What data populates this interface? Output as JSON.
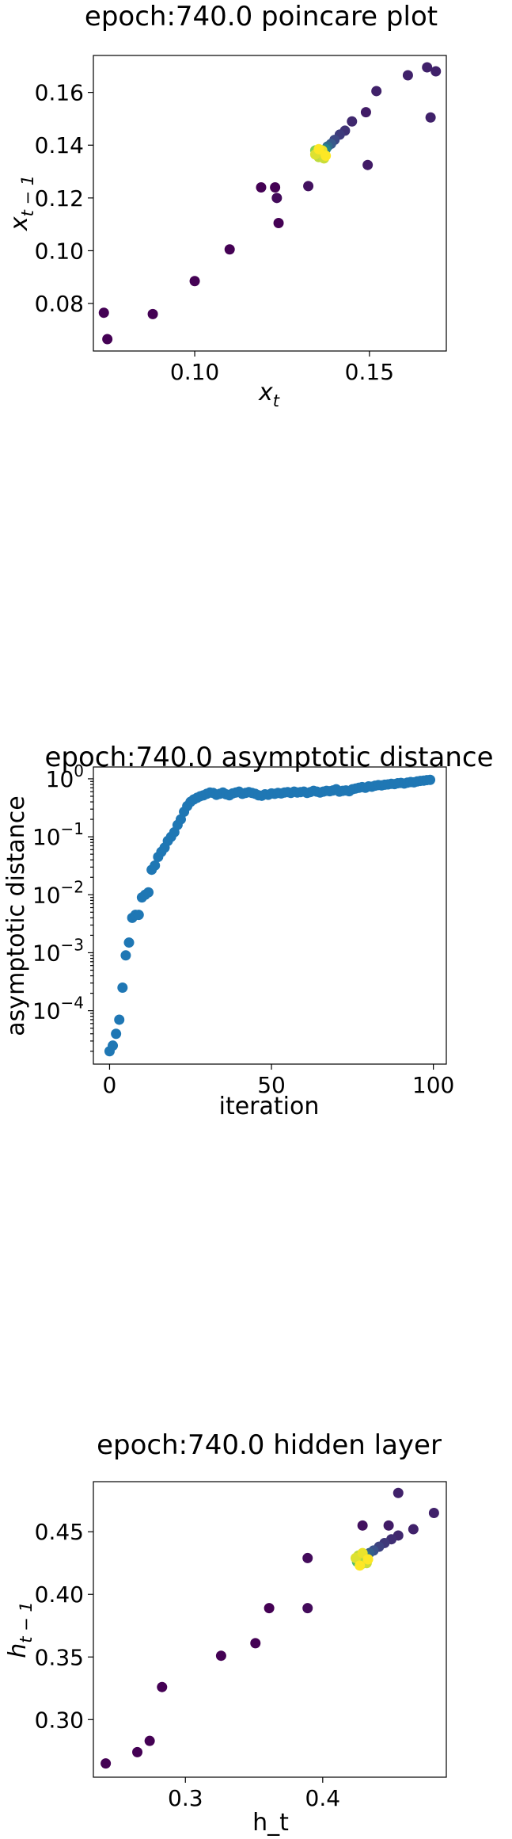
{
  "chart_data": [
    {
      "type": "scatter",
      "title": "epoch:740.0 poincare plot",
      "xlabel": "x_t",
      "ylabel": "x_{t-1}",
      "xlim": [
        0.071,
        0.172
      ],
      "ylim": [
        0.062,
        0.174
      ],
      "xticks": [
        0.1,
        0.15
      ],
      "xtick_labels": [
        "0.10",
        "0.15"
      ],
      "yticks": [
        0.08,
        0.1,
        0.12,
        0.14,
        0.16
      ],
      "ytick_labels": [
        "0.08",
        "0.10",
        "0.12",
        "0.14",
        "0.16"
      ],
      "grid": false,
      "colormap": [
        "#440154",
        "#3b528b",
        "#21918c",
        "#5ec962",
        "#fde725"
      ],
      "points": [
        {
          "x": 0.074,
          "y": 0.0765,
          "c": 0.0
        },
        {
          "x": 0.075,
          "y": 0.0665,
          "c": 0.0
        },
        {
          "x": 0.088,
          "y": 0.076,
          "c": 0.0
        },
        {
          "x": 0.1,
          "y": 0.0885,
          "c": 0.0
        },
        {
          "x": 0.11,
          "y": 0.1005,
          "c": 0.0
        },
        {
          "x": 0.119,
          "y": 0.124,
          "c": 0.0
        },
        {
          "x": 0.123,
          "y": 0.124,
          "c": 0.0
        },
        {
          "x": 0.124,
          "y": 0.1105,
          "c": 0.0
        },
        {
          "x": 0.1235,
          "y": 0.12,
          "c": 0.03
        },
        {
          "x": 0.1325,
          "y": 0.1245,
          "c": 0.05
        },
        {
          "x": 0.149,
          "y": 0.1525,
          "c": 0.08
        },
        {
          "x": 0.1495,
          "y": 0.1325,
          "c": 0.08
        },
        {
          "x": 0.152,
          "y": 0.1605,
          "c": 0.1
        },
        {
          "x": 0.161,
          "y": 0.1665,
          "c": 0.1
        },
        {
          "x": 0.1665,
          "y": 0.1695,
          "c": 0.1
        },
        {
          "x": 0.169,
          "y": 0.168,
          "c": 0.1
        },
        {
          "x": 0.1675,
          "y": 0.1505,
          "c": 0.1
        },
        {
          "x": 0.145,
          "y": 0.149,
          "c": 0.12
        },
        {
          "x": 0.143,
          "y": 0.1455,
          "c": 0.15
        },
        {
          "x": 0.1415,
          "y": 0.144,
          "c": 0.18
        },
        {
          "x": 0.14,
          "y": 0.142,
          "c": 0.22
        },
        {
          "x": 0.139,
          "y": 0.1405,
          "c": 0.28
        },
        {
          "x": 0.138,
          "y": 0.1395,
          "c": 0.35
        },
        {
          "x": 0.1375,
          "y": 0.1385,
          "c": 0.45
        },
        {
          "x": 0.1365,
          "y": 0.1375,
          "c": 0.55
        },
        {
          "x": 0.1355,
          "y": 0.137,
          "c": 0.65
        },
        {
          "x": 0.136,
          "y": 0.136,
          "c": 0.7
        },
        {
          "x": 0.1345,
          "y": 0.138,
          "c": 0.8
        },
        {
          "x": 0.1365,
          "y": 0.1365,
          "c": 0.85
        },
        {
          "x": 0.1355,
          "y": 0.1355,
          "c": 0.9
        },
        {
          "x": 0.137,
          "y": 0.135,
          "c": 0.92
        },
        {
          "x": 0.1345,
          "y": 0.1365,
          "c": 0.95
        },
        {
          "x": 0.1365,
          "y": 0.138,
          "c": 0.97
        },
        {
          "x": 0.1355,
          "y": 0.1385,
          "c": 1.0
        },
        {
          "x": 0.1375,
          "y": 0.136,
          "c": 1.0
        }
      ]
    },
    {
      "type": "scatter",
      "title": "epoch:740.0 asymptotic distance",
      "xlabel": "iteration",
      "ylabel": "asymptotic distance",
      "yscale": "log",
      "xlim": [
        -5,
        104
      ],
      "ylim": [
        1.2e-05,
        1.6
      ],
      "xticks": [
        0,
        50,
        100
      ],
      "xtick_labels": [
        "0",
        "50",
        "100"
      ],
      "yticks": [
        0.0001,
        0.001,
        0.01,
        0.1,
        1
      ],
      "ytick_labels": [
        "10^-4",
        "10^-3",
        "10^-2",
        "10^-1",
        "10^0"
      ],
      "grid": false,
      "color": "#1f77b4",
      "x": [
        0,
        1,
        2,
        3,
        4,
        5,
        6,
        7,
        8,
        9,
        10,
        11,
        12,
        13,
        14,
        15,
        16,
        17,
        18,
        19,
        20,
        21,
        22,
        23,
        24,
        25,
        26,
        27,
        28,
        29,
        30,
        31,
        32,
        33,
        34,
        35,
        36,
        37,
        38,
        39,
        40,
        41,
        42,
        43,
        44,
        45,
        46,
        47,
        48,
        49,
        50,
        51,
        52,
        53,
        54,
        55,
        56,
        57,
        58,
        59,
        60,
        61,
        62,
        63,
        64,
        65,
        66,
        67,
        68,
        69,
        70,
        71,
        72,
        73,
        74,
        75,
        76,
        77,
        78,
        79,
        80,
        81,
        82,
        83,
        84,
        85,
        86,
        87,
        88,
        89,
        90,
        91,
        92,
        93,
        94,
        95,
        96,
        97,
        98,
        99
      ],
      "y": [
        2e-05,
        2.5e-05,
        4e-05,
        7e-05,
        0.00025,
        0.0009,
        0.0015,
        0.004,
        0.0045,
        0.0045,
        0.009,
        0.01,
        0.011,
        0.027,
        0.032,
        0.045,
        0.055,
        0.065,
        0.085,
        0.1,
        0.12,
        0.16,
        0.2,
        0.27,
        0.34,
        0.4,
        0.44,
        0.47,
        0.5,
        0.52,
        0.55,
        0.58,
        0.57,
        0.53,
        0.55,
        0.58,
        0.54,
        0.52,
        0.56,
        0.58,
        0.6,
        0.55,
        0.57,
        0.59,
        0.57,
        0.55,
        0.52,
        0.51,
        0.54,
        0.53,
        0.56,
        0.55,
        0.57,
        0.56,
        0.58,
        0.59,
        0.57,
        0.6,
        0.58,
        0.59,
        0.6,
        0.57,
        0.59,
        0.62,
        0.6,
        0.58,
        0.6,
        0.62,
        0.61,
        0.63,
        0.66,
        0.6,
        0.62,
        0.63,
        0.61,
        0.66,
        0.68,
        0.7,
        0.72,
        0.7,
        0.74,
        0.73,
        0.76,
        0.78,
        0.77,
        0.79,
        0.8,
        0.82,
        0.81,
        0.84,
        0.85,
        0.83,
        0.86,
        0.88,
        0.87,
        0.9,
        0.92,
        0.93,
        0.95,
        0.96
      ]
    },
    {
      "type": "scatter",
      "title": "epoch:740.0 hidden layer",
      "xlabel": "h_t",
      "ylabel": "h_{t-1}",
      "xlim": [
        0.233,
        0.49
      ],
      "ylim": [
        0.254,
        0.49
      ],
      "xticks": [
        0.3,
        0.4
      ],
      "xtick_labels": [
        "0.3",
        "0.4"
      ],
      "yticks": [
        0.3,
        0.35,
        0.4,
        0.45
      ],
      "ytick_labels": [
        "0.30",
        "0.35",
        "0.40",
        "0.45"
      ],
      "grid": false,
      "colormap": [
        "#440154",
        "#3b528b",
        "#21918c",
        "#5ec962",
        "#fde725"
      ],
      "points": [
        {
          "x": 0.242,
          "y": 0.265,
          "c": 0.0
        },
        {
          "x": 0.265,
          "y": 0.274,
          "c": 0.0
        },
        {
          "x": 0.274,
          "y": 0.283,
          "c": 0.0
        },
        {
          "x": 0.283,
          "y": 0.326,
          "c": 0.0
        },
        {
          "x": 0.326,
          "y": 0.351,
          "c": 0.0
        },
        {
          "x": 0.351,
          "y": 0.361,
          "c": 0.0
        },
        {
          "x": 0.361,
          "y": 0.389,
          "c": 0.0
        },
        {
          "x": 0.389,
          "y": 0.389,
          "c": 0.03
        },
        {
          "x": 0.389,
          "y": 0.429,
          "c": 0.03
        },
        {
          "x": 0.429,
          "y": 0.455,
          "c": 0.05
        },
        {
          "x": 0.448,
          "y": 0.455,
          "c": 0.08
        },
        {
          "x": 0.455,
          "y": 0.481,
          "c": 0.1
        },
        {
          "x": 0.466,
          "y": 0.452,
          "c": 0.1
        },
        {
          "x": 0.481,
          "y": 0.465,
          "c": 0.1
        },
        {
          "x": 0.455,
          "y": 0.447,
          "c": 0.12
        },
        {
          "x": 0.45,
          "y": 0.444,
          "c": 0.14
        },
        {
          "x": 0.445,
          "y": 0.441,
          "c": 0.17
        },
        {
          "x": 0.441,
          "y": 0.438,
          "c": 0.2
        },
        {
          "x": 0.437,
          "y": 0.435,
          "c": 0.25
        },
        {
          "x": 0.434,
          "y": 0.433,
          "c": 0.3
        },
        {
          "x": 0.431,
          "y": 0.431,
          "c": 0.4
        },
        {
          "x": 0.429,
          "y": 0.43,
          "c": 0.5
        },
        {
          "x": 0.427,
          "y": 0.428,
          "c": 0.6
        },
        {
          "x": 0.425,
          "y": 0.426,
          "c": 0.7
        },
        {
          "x": 0.428,
          "y": 0.424,
          "c": 0.8
        },
        {
          "x": 0.43,
          "y": 0.427,
          "c": 0.85
        },
        {
          "x": 0.426,
          "y": 0.431,
          "c": 0.9
        },
        {
          "x": 0.432,
          "y": 0.425,
          "c": 0.92
        },
        {
          "x": 0.424,
          "y": 0.429,
          "c": 0.95
        },
        {
          "x": 0.429,
          "y": 0.433,
          "c": 0.97
        },
        {
          "x": 0.433,
          "y": 0.428,
          "c": 1.0
        },
        {
          "x": 0.427,
          "y": 0.423,
          "c": 1.0
        }
      ]
    }
  ]
}
